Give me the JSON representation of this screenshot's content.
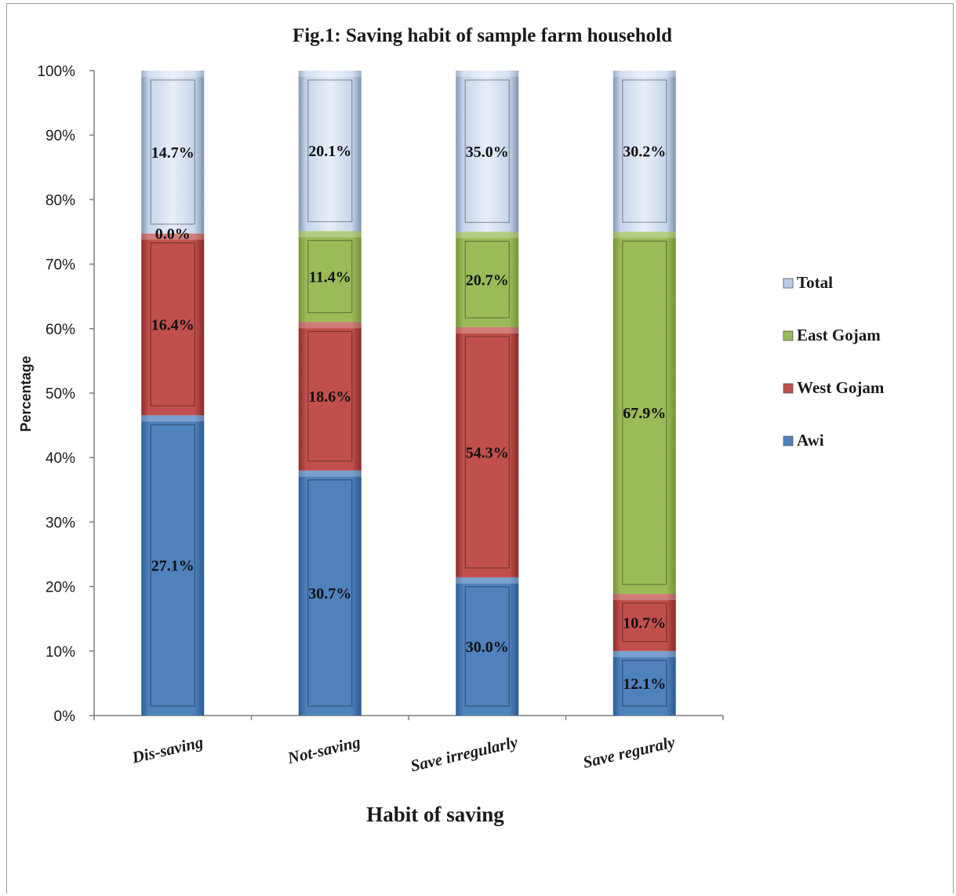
{
  "chart_data": {
    "type": "bar",
    "stacked": "percent",
    "title": "Fig.1: Saving habit of sample farm household",
    "xlabel": "Habit of saving",
    "ylabel": "Percentage",
    "ylim": [
      0,
      100
    ],
    "yticks": [
      "0%",
      "10%",
      "20%",
      "30%",
      "40%",
      "50%",
      "60%",
      "70%",
      "80%",
      "90%",
      "100%"
    ],
    "categories": [
      "Dis-saving",
      "Not-saving",
      "Save irregularly",
      "Save reguraly"
    ],
    "series": [
      {
        "name": "Awi",
        "color": "#4f81bd",
        "values": [
          27.1,
          30.7,
          30.0,
          12.1
        ],
        "labels": [
          "27.1%",
          "30.7%",
          "30.0%",
          "12.1%"
        ]
      },
      {
        "name": "West Gojam",
        "color": "#c0504d",
        "values": [
          16.4,
          18.6,
          54.3,
          10.7
        ],
        "labels": [
          "16.4%",
          "18.6%",
          "54.3%",
          "10.7%"
        ]
      },
      {
        "name": "East Gojam",
        "color": "#9bbb59",
        "values": [
          0.0,
          11.4,
          20.7,
          67.9
        ],
        "labels": [
          "0.0%",
          "11.4%",
          "20.7%",
          "67.9%"
        ]
      },
      {
        "name": "Total",
        "color": "#b9cde5",
        "values": [
          14.7,
          20.1,
          35.0,
          30.2
        ],
        "labels": [
          "14.7%",
          "20.1%",
          "35.0%",
          "30.2%"
        ]
      }
    ],
    "legend_order": [
      "Total",
      "East Gojam",
      "West Gojam",
      "Awi"
    ],
    "legend_position": "right",
    "grid": false
  }
}
